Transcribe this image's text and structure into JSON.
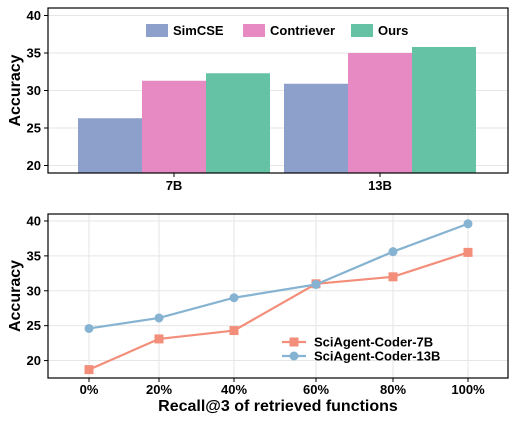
{
  "chart_data": [
    {
      "type": "bar",
      "categories": [
        "7B",
        "13B"
      ],
      "series": [
        {
          "name": "SimCSE",
          "values": [
            26.3,
            30.9
          ],
          "color": "#8da0cb"
        },
        {
          "name": "Contriever",
          "values": [
            31.3,
            35.0
          ],
          "color": "#e78ac3"
        },
        {
          "name": "Ours",
          "values": [
            32.3,
            35.8
          ],
          "color": "#66c2a5"
        }
      ],
      "title": "",
      "xlabel": "",
      "ylabel": "Accuracy",
      "ylim": [
        19,
        41
      ],
      "yticks": [
        20,
        25,
        30,
        35,
        40
      ],
      "grid": true,
      "legend": "top"
    },
    {
      "type": "line",
      "x": [
        "0%",
        "20%",
        "40%",
        "60%",
        "80%",
        "100%"
      ],
      "series": [
        {
          "name": "SciAgent-Coder-7B",
          "values": [
            18.7,
            23.1,
            24.3,
            31.0,
            32.0,
            35.5
          ],
          "color": "#f28e7a",
          "marker": "square"
        },
        {
          "name": "SciAgent-Coder-13B",
          "values": [
            24.6,
            26.1,
            29.0,
            30.9,
            35.6,
            39.6
          ],
          "color": "#85b3d1",
          "marker": "circle"
        }
      ],
      "title": "",
      "xlabel": "Recall@3 of retrieved functions",
      "ylabel": "Accuracy",
      "ylim": [
        17.5,
        41
      ],
      "yticks": [
        20,
        25,
        30,
        35,
        40
      ],
      "grid": true,
      "legend": "bottom-right"
    }
  ]
}
